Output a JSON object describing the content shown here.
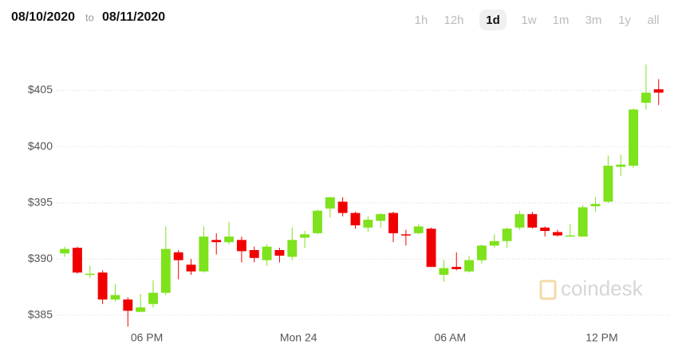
{
  "header": {
    "from": "08/10/2020",
    "separator": "to",
    "to": "08/11/2020",
    "intervals": [
      "1h",
      "12h",
      "1d",
      "1w",
      "1m",
      "3m",
      "1y",
      "all"
    ],
    "selected_interval": "1d"
  },
  "watermark": "coindesk",
  "chart_data": {
    "type": "candlestick",
    "x": [
      14.75,
      15.25,
      15.75,
      16.25,
      16.75,
      17.25,
      17.75,
      18.25,
      18.75,
      19.25,
      19.75,
      20.25,
      20.75,
      21.25,
      21.75,
      22.25,
      22.75,
      23.25,
      23.75,
      24.25,
      24.75,
      25.25,
      25.75,
      26.25,
      26.75,
      27.25,
      27.75,
      28.25,
      28.75,
      29.25,
      29.75,
      30.25,
      30.75,
      31.25,
      31.75,
      32.25,
      32.75,
      33.25,
      33.75,
      34.25,
      34.75,
      35.25,
      35.75,
      36.25,
      36.75,
      37.25,
      37.75,
      38.25
    ],
    "open": [
      390.5,
      391.0,
      388.6,
      388.8,
      386.4,
      386.4,
      385.3,
      386.0,
      387.0,
      390.6,
      389.5,
      388.9,
      391.7,
      391.5,
      391.7,
      390.8,
      389.9,
      390.8,
      390.2,
      391.9,
      392.3,
      394.5,
      395.1,
      394.1,
      392.8,
      393.4,
      394.1,
      392.2,
      392.3,
      392.7,
      388.6,
      389.3,
      388.9,
      389.9,
      391.2,
      391.6,
      392.8,
      394.0,
      392.8,
      392.4,
      392.1,
      392.0,
      394.7,
      395.1,
      398.2,
      398.3,
      403.9,
      405.1
    ],
    "high": [
      391.1,
      391.1,
      389.4,
      389.0,
      387.8,
      386.6,
      386.9,
      388.1,
      392.9,
      390.8,
      390.0,
      392.9,
      392.3,
      393.3,
      392.0,
      391.1,
      391.3,
      391.0,
      392.8,
      392.5,
      394.4,
      395.5,
      395.5,
      394.2,
      393.8,
      394.1,
      394.2,
      392.6,
      393.1,
      392.8,
      389.9,
      390.6,
      390.3,
      391.3,
      392.2,
      392.8,
      394.3,
      394.2,
      392.9,
      392.6,
      393.1,
      394.8,
      395.5,
      399.2,
      399.3,
      403.4,
      407.3,
      406.0
    ],
    "low": [
      390.2,
      388.7,
      388.3,
      386.0,
      386.2,
      384.0,
      385.3,
      385.7,
      386.8,
      388.2,
      388.6,
      388.8,
      390.4,
      391.3,
      389.7,
      389.7,
      389.4,
      389.7,
      389.9,
      391.0,
      392.2,
      393.7,
      393.8,
      392.7,
      392.4,
      392.8,
      391.5,
      391.2,
      392.2,
      389.3,
      388.0,
      389.0,
      388.8,
      389.6,
      391.0,
      391.0,
      392.6,
      392.7,
      392.0,
      392.0,
      392.0,
      392.0,
      394.2,
      395.0,
      397.4,
      398.1,
      403.3,
      403.7
    ],
    "close": [
      390.9,
      388.8,
      388.7,
      386.4,
      386.8,
      385.4,
      385.7,
      387.0,
      390.9,
      389.9,
      388.9,
      392.0,
      391.5,
      392.0,
      390.7,
      390.1,
      391.1,
      390.3,
      391.7,
      392.2,
      394.3,
      395.5,
      394.1,
      393.0,
      393.5,
      394.0,
      392.3,
      392.1,
      392.9,
      389.3,
      389.2,
      389.1,
      389.9,
      391.2,
      391.6,
      392.7,
      394.0,
      392.8,
      392.5,
      392.1,
      392.1,
      394.6,
      394.9,
      398.3,
      398.4,
      403.3,
      404.8,
      404.8
    ],
    "up_color": "#7ee21c",
    "down_color": "#f00000",
    "xlim": [
      14.4,
      38.7
    ],
    "xticks": [
      {
        "value": 18,
        "label": "06 PM"
      },
      {
        "value": 24,
        "label": "Mon 24"
      },
      {
        "value": 30,
        "label": "06 AM"
      },
      {
        "value": 36,
        "label": "12 PM"
      }
    ],
    "ylim": [
      384.0,
      409.5
    ],
    "yticks": [
      {
        "value": 385,
        "label": "$385"
      },
      {
        "value": 390,
        "label": "$390"
      },
      {
        "value": 395,
        "label": "$395"
      },
      {
        "value": 400,
        "label": "$400"
      },
      {
        "value": 405,
        "label": "$405"
      }
    ],
    "grid": true
  }
}
